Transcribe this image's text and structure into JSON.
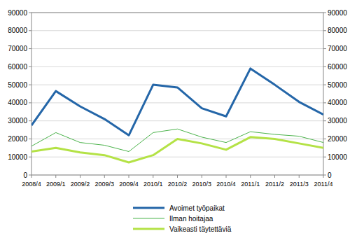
{
  "chart_data": {
    "type": "line",
    "categories": [
      "2008/4",
      "2009/1",
      "2009/2",
      "2009/3",
      "2009/4",
      "2010/1",
      "2010/2",
      "2010/3",
      "2010/4",
      "2011/1",
      "2011/2",
      "2011/3",
      "2011/4"
    ],
    "series": [
      {
        "name": "Avoimet työpaikat",
        "color": "#2466a8",
        "values": [
          27500,
          46500,
          38000,
          31000,
          22000,
          50000,
          48500,
          37000,
          32500,
          59000,
          50000,
          40500,
          33500
        ]
      },
      {
        "name": "Ilman hoitajaa",
        "color": "#4bb34b",
        "values": [
          16000,
          23500,
          18000,
          16500,
          13000,
          23500,
          25500,
          21000,
          18000,
          24000,
          22500,
          21500,
          18000
        ]
      },
      {
        "name": "Vaikeasti täytettäviä",
        "color": "#b4e246",
        "values": [
          13000,
          15000,
          12500,
          11000,
          7000,
          11000,
          20000,
          17500,
          14000,
          21000,
          20000,
          17500,
          15000
        ]
      }
    ],
    "ylim": [
      0,
      90000
    ],
    "yticks": [
      0,
      10000,
      20000,
      30000,
      40000,
      50000,
      60000,
      70000,
      80000,
      90000
    ],
    "grid": true,
    "legend": "bottom"
  }
}
